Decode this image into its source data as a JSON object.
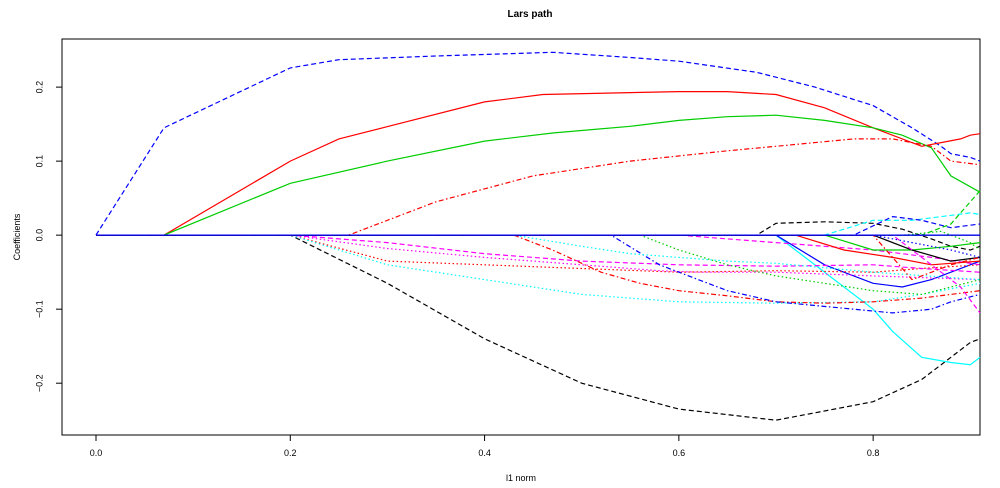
{
  "chart_data": {
    "type": "line",
    "title": "Lars path",
    "xlabel": "l1 norm",
    "ylabel": "Coefficients",
    "xlim": [
      -0.035,
      0.91
    ],
    "ylim": [
      -0.27,
      0.265
    ],
    "xticks": [
      0.0,
      0.2,
      0.4,
      0.6,
      0.8
    ],
    "xtick_labels": [
      "0.0",
      "0.2",
      "0.4",
      "0.6",
      "0.8"
    ],
    "yticks": [
      -0.2,
      -0.1,
      0.0,
      0.1,
      0.2
    ],
    "ytick_labels": [
      "−0.2",
      "−0.1",
      "0.0",
      "0.1",
      "0.2"
    ],
    "grid": false,
    "legend": "none",
    "series": [
      {
        "color": "#0000ff",
        "dash": "dashed",
        "x": [
          0,
          0.07,
          0.2,
          0.25,
          0.35,
          0.47,
          0.55,
          0.6,
          0.68,
          0.74,
          0.8,
          0.84,
          0.87,
          0.88,
          0.9,
          0.91
        ],
        "y": [
          0,
          0.145,
          0.226,
          0.237,
          0.242,
          0.247,
          0.24,
          0.235,
          0.22,
          0.2,
          0.175,
          0.145,
          0.12,
          0.11,
          0.105,
          0.1
        ]
      },
      {
        "color": "#ff0000",
        "dash": "solid",
        "x": [
          0,
          0.07,
          0.2,
          0.25,
          0.4,
          0.46,
          0.6,
          0.65,
          0.7,
          0.75,
          0.8,
          0.85,
          0.87,
          0.89,
          0.9,
          0.91
        ],
        "y": [
          0,
          0,
          0.1,
          0.13,
          0.18,
          0.19,
          0.194,
          0.194,
          0.19,
          0.172,
          0.145,
          0.12,
          0.125,
          0.13,
          0.135,
          0.137
        ]
      },
      {
        "color": "#00cd00",
        "dash": "solid",
        "x": [
          0,
          0.07,
          0.2,
          0.3,
          0.4,
          0.47,
          0.55,
          0.6,
          0.65,
          0.7,
          0.75,
          0.8,
          0.83,
          0.86,
          0.88,
          0.91
        ],
        "y": [
          0,
          0,
          0.07,
          0.1,
          0.127,
          0.138,
          0.147,
          0.155,
          0.16,
          0.162,
          0.155,
          0.145,
          0.135,
          0.118,
          0.08,
          0.058
        ]
      },
      {
        "color": "#ff0000",
        "dash": "dotdash",
        "x": [
          0,
          0.26,
          0.35,
          0.45,
          0.55,
          0.65,
          0.7,
          0.78,
          0.82,
          0.86,
          0.88,
          0.91
        ],
        "y": [
          0,
          0,
          0.045,
          0.08,
          0.1,
          0.114,
          0.12,
          0.13,
          0.13,
          0.12,
          0.1,
          0.095
        ]
      },
      {
        "color": "#000000",
        "dash": "dashed",
        "x": [
          0,
          0.2,
          0.3,
          0.4,
          0.5,
          0.6,
          0.7,
          0.8,
          0.85,
          0.88,
          0.9,
          0.91
        ],
        "y": [
          0,
          0,
          -0.065,
          -0.14,
          -0.2,
          -0.235,
          -0.25,
          -0.225,
          -0.195,
          -0.165,
          -0.145,
          -0.14
        ]
      },
      {
        "color": "#00ffff",
        "dash": "solid",
        "x": [
          0,
          0.7,
          0.73,
          0.76,
          0.8,
          0.82,
          0.85,
          0.88,
          0.9,
          0.91
        ],
        "y": [
          0,
          0,
          -0.03,
          -0.06,
          -0.1,
          -0.13,
          -0.165,
          -0.172,
          -0.175,
          -0.165
        ]
      },
      {
        "color": "#0000ff",
        "dash": "solid",
        "x": [
          0,
          0.7,
          0.75,
          0.8,
          0.83,
          0.86,
          0.88,
          0.9,
          0.91
        ],
        "y": [
          0,
          0,
          -0.04,
          -0.065,
          -0.07,
          -0.06,
          -0.05,
          -0.04,
          -0.035
        ]
      },
      {
        "color": "#ff0000",
        "dash": "dotted",
        "x": [
          0,
          0.2,
          0.3,
          0.4,
          0.5,
          0.6,
          0.7,
          0.8,
          0.85,
          0.91
        ],
        "y": [
          0,
          0,
          -0.035,
          -0.04,
          -0.045,
          -0.05,
          -0.048,
          -0.05,
          -0.045,
          -0.04
        ]
      },
      {
        "color": "#ff00ff",
        "dash": "dotted",
        "x": [
          0,
          0.2,
          0.3,
          0.4,
          0.5,
          0.58,
          0.62,
          0.7,
          0.8,
          0.91
        ],
        "y": [
          0,
          0,
          -0.018,
          -0.03,
          -0.04,
          -0.048,
          -0.05,
          -0.05,
          -0.055,
          -0.06
        ]
      },
      {
        "color": "#00ffff",
        "dash": "dotted",
        "x": [
          0,
          0.2,
          0.3,
          0.4,
          0.5,
          0.6,
          0.7,
          0.8,
          0.85,
          0.91
        ],
        "y": [
          0,
          0,
          -0.04,
          -0.06,
          -0.08,
          -0.09,
          -0.092,
          -0.09,
          -0.08,
          -0.065
        ]
      },
      {
        "color": "#ff00ff",
        "dash": "dashed",
        "x": [
          0,
          0.2,
          0.3,
          0.4,
          0.5,
          0.6,
          0.7,
          0.8,
          0.85,
          0.91
        ],
        "y": [
          0,
          0,
          -0.01,
          -0.025,
          -0.035,
          -0.04,
          -0.042,
          -0.04,
          -0.045,
          -0.05
        ]
      },
      {
        "color": "#ff0000",
        "dash": "dotdash",
        "x": [
          0,
          0.43,
          0.47,
          0.52,
          0.56,
          0.6,
          0.65,
          0.7,
          0.75,
          0.8,
          0.85,
          0.88,
          0.91
        ],
        "y": [
          0,
          0,
          -0.02,
          -0.05,
          -0.065,
          -0.075,
          -0.082,
          -0.09,
          -0.092,
          -0.09,
          -0.085,
          -0.08,
          -0.075
        ]
      },
      {
        "color": "#0000ff",
        "dash": "dotdash",
        "x": [
          0,
          0.53,
          0.58,
          0.65,
          0.7,
          0.74,
          0.78,
          0.82,
          0.86,
          0.88,
          0.91
        ],
        "y": [
          0,
          0,
          -0.04,
          -0.075,
          -0.09,
          -0.095,
          -0.1,
          -0.105,
          -0.1,
          -0.09,
          -0.08
        ]
      },
      {
        "color": "#00cd00",
        "dash": "dotted",
        "x": [
          0,
          0.56,
          0.6,
          0.65,
          0.7,
          0.75,
          0.8,
          0.85,
          0.88,
          0.91
        ],
        "y": [
          0,
          0,
          -0.02,
          -0.04,
          -0.055,
          -0.065,
          -0.075,
          -0.08,
          -0.07,
          -0.06
        ]
      },
      {
        "color": "#00ffff",
        "dash": "dotted",
        "x": [
          0,
          0.43,
          0.5,
          0.55,
          0.6,
          0.65,
          0.7,
          0.8,
          0.91
        ],
        "y": [
          0,
          0,
          -0.015,
          -0.025,
          -0.03,
          -0.035,
          -0.038,
          -0.05,
          -0.06
        ]
      },
      {
        "color": "#000000",
        "dash": "dashed",
        "x": [
          0,
          0.68,
          0.7,
          0.75,
          0.8,
          0.83,
          0.86,
          0.88,
          0.9,
          0.91
        ],
        "y": [
          0,
          0,
          0.016,
          0.018,
          0.016,
          0.008,
          -0.005,
          -0.015,
          -0.02,
          -0.015
        ]
      },
      {
        "color": "#00ffff",
        "dash": "dashed",
        "x": [
          0,
          0.75,
          0.8,
          0.84,
          0.87,
          0.9,
          0.91
        ],
        "y": [
          0,
          0,
          0.02,
          0.02,
          0.025,
          0.03,
          0.028
        ]
      },
      {
        "color": "#0000ff",
        "dash": "dashed",
        "x": [
          0,
          0.78,
          0.82,
          0.85,
          0.88,
          0.91
        ],
        "y": [
          0,
          0,
          0.025,
          0.02,
          0.01,
          0.015
        ]
      },
      {
        "color": "#00cd00",
        "dash": "dashed",
        "x": [
          0,
          0.85,
          0.88,
          0.9,
          0.91
        ],
        "y": [
          0,
          0,
          0.015,
          0.045,
          0.06
        ]
      },
      {
        "color": "#ff00ff",
        "dash": "dashed",
        "x": [
          0,
          0.6,
          0.65,
          0.7,
          0.75,
          0.8,
          0.86,
          0.91
        ],
        "y": [
          0,
          0,
          -0.005,
          -0.01,
          -0.015,
          -0.02,
          -0.03,
          -0.04
        ]
      },
      {
        "color": "#ff0000",
        "dash": "solid",
        "x": [
          0,
          0.72,
          0.77,
          0.82,
          0.86,
          0.88,
          0.91
        ],
        "y": [
          0,
          0,
          -0.02,
          -0.03,
          -0.04,
          -0.038,
          -0.035
        ]
      },
      {
        "color": "#00cd00",
        "dash": "solid",
        "x": [
          0,
          0.75,
          0.8,
          0.84,
          0.88,
          0.91
        ],
        "y": [
          0,
          0,
          -0.02,
          -0.02,
          -0.015,
          -0.01
        ]
      },
      {
        "color": "#000000",
        "dash": "solid",
        "x": [
          0,
          0.8,
          0.84,
          0.88,
          0.91
        ],
        "y": [
          0,
          0,
          -0.02,
          -0.035,
          -0.03
        ]
      },
      {
        "color": "#ff00ff",
        "dash": "dashed",
        "x": [
          0,
          0.82,
          0.86,
          0.89,
          0.91
        ],
        "y": [
          0,
          0,
          -0.04,
          -0.07,
          -0.105
        ]
      },
      {
        "color": "#0000ff",
        "dash": "dotted",
        "x": [
          0,
          0.8,
          0.84,
          0.88,
          0.91
        ],
        "y": [
          0,
          0,
          -0.01,
          -0.02,
          -0.03
        ]
      },
      {
        "color": "#00cd00",
        "dash": "dotted",
        "x": [
          0,
          0.83,
          0.87,
          0.9,
          0.91
        ],
        "y": [
          0,
          0,
          0.005,
          -0.01,
          -0.02
        ]
      },
      {
        "color": "#ff0000",
        "dash": "dotdash",
        "x": [
          0,
          0.8,
          0.84,
          0.88,
          0.91
        ],
        "y": [
          0,
          0,
          -0.06,
          -0.04,
          -0.03
        ]
      },
      {
        "color": "#000000",
        "dash": "solid",
        "x": [
          0,
          0.91
        ],
        "y": [
          0,
          0
        ]
      },
      {
        "color": "#0000ff",
        "dash": "solid",
        "x": [
          0,
          0.91
        ],
        "y": [
          0,
          0
        ]
      }
    ]
  }
}
